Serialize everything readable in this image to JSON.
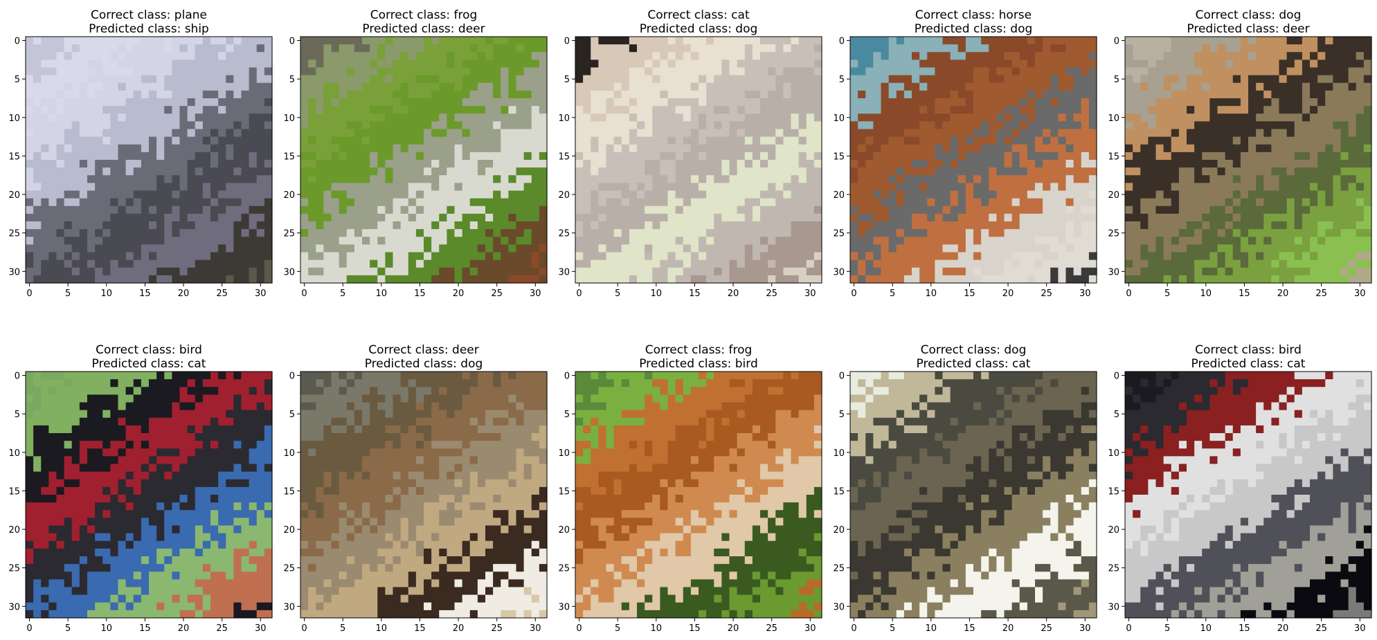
{
  "figure": {
    "panels": [
      {
        "correct": "Correct class: plane",
        "predicted": "Predicted class: ship",
        "colors": [
          "#c4c6d8",
          "#d8d9ea",
          "#d3d4e6",
          "#b9bccf",
          "#6b6b78",
          "#4a4a52",
          "#6f6c7e",
          "#3d3a36",
          "#5a5a4a",
          "#7a9a80"
        ]
      },
      {
        "correct": "Correct class: frog",
        "predicted": "Predicted class: deer",
        "colors": [
          "#6b6a5a",
          "#8a9a6a",
          "#7aa03a",
          "#6b9a2a",
          "#9aa08a",
          "#d8dad0",
          "#5a8a2a",
          "#6a4a2a",
          "#8a4a2a",
          "#5a2a1a"
        ]
      },
      {
        "correct": "Correct class: cat",
        "predicted": "Predicted class: dog",
        "colors": [
          "#2a2420",
          "#d8c8b8",
          "#e8e0d0",
          "#c8c0b8",
          "#b8b0a8",
          "#e0e4c8",
          "#c0b8b0",
          "#a89890",
          "#d8d0c0",
          "#9a8a80"
        ]
      },
      {
        "correct": "Correct class: horse",
        "predicted": "Predicted class: dog",
        "colors": [
          "#4a8aa0",
          "#8ab0b8",
          "#8a4a2a",
          "#a05a30",
          "#6a6a6a",
          "#c07040",
          "#d8d4cc",
          "#e0dcd4",
          "#3a3a3a",
          "#c8c4bc"
        ]
      },
      {
        "correct": "Correct class: dog",
        "predicted": "Predicted class: deer",
        "colors": [
          "#b8b0a0",
          "#a8a090",
          "#c09060",
          "#3a3028",
          "#8a7a5a",
          "#5a6a3a",
          "#7aa040",
          "#8ac050",
          "#b0a888",
          "#6a5a40"
        ]
      },
      {
        "correct": "Correct class: bird",
        "predicted": "Predicted class: cat",
        "colors": [
          "#7aa860",
          "#80b060",
          "#1a1a20",
          "#a02030",
          "#2a2a30",
          "#3a6ab0",
          "#8ab870",
          "#c07050",
          "#1a1820",
          "#90b878"
        ]
      },
      {
        "correct": "Correct class: deer",
        "predicted": "Predicted class: dog",
        "colors": [
          "#5a5a50",
          "#7a7868",
          "#6a5a40",
          "#8a6a48",
          "#9a8a70",
          "#c0a880",
          "#3a2a20",
          "#f0ece4",
          "#d8c8a8",
          "#7a6a58"
        ]
      },
      {
        "correct": "Correct class: frog",
        "predicted": "Predicted class: bird",
        "colors": [
          "#5a8a3a",
          "#7ab040",
          "#c07030",
          "#a85a20",
          "#d08a50",
          "#e0c8a8",
          "#3a5a20",
          "#6a9a30",
          "#b86a28",
          "#4a7a2a"
        ]
      },
      {
        "correct": "Correct class: dog",
        "predicted": "Predicted class: cat",
        "colors": [
          "#e8ece0",
          "#c0b898",
          "#4a4a40",
          "#6a6450",
          "#3a3830",
          "#8a8060",
          "#f4f4ec",
          "#5a5848",
          "#a09878",
          "#2a2a24"
        ]
      },
      {
        "correct": "Correct class: bird",
        "predicted": "Predicted class: cat",
        "colors": [
          "#1a1a20",
          "#2a2a30",
          "#8a2020",
          "#e0e0e0",
          "#c8c8c8",
          "#505058",
          "#a0a098",
          "#0a0a10",
          "#7a7a78",
          "#b8b8a8"
        ]
      }
    ],
    "xticks": [
      "0",
      "5",
      "10",
      "15",
      "20",
      "25",
      "30"
    ],
    "yticks": [
      "0",
      "5",
      "10",
      "15",
      "20",
      "25",
      "30"
    ]
  }
}
